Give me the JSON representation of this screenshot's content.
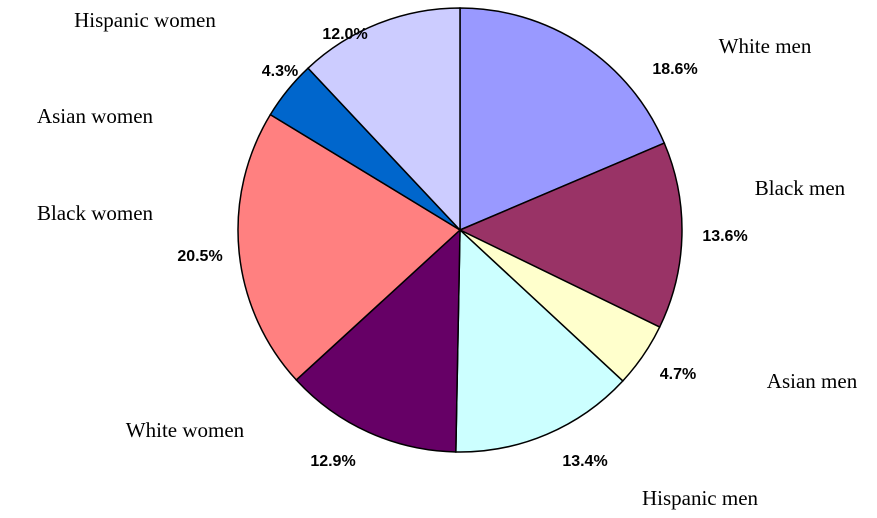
{
  "chart_data": {
    "type": "pie",
    "categories": [
      "White men",
      "Black men",
      "Asian men",
      "Hispanic men",
      "White women",
      "Black women",
      "Asian women",
      "Hispanic women"
    ],
    "values": [
      18.6,
      13.6,
      4.7,
      13.4,
      12.9,
      20.5,
      4.3,
      12.0
    ],
    "value_labels": [
      "18.6%",
      "13.6%",
      "4.7%",
      "13.4%",
      "12.9%",
      "20.5%",
      "4.3%",
      "12.0%"
    ],
    "colors": [
      "#9999ff",
      "#993366",
      "#ffffcc",
      "#ccffff",
      "#660066",
      "#ff8080",
      "#0066cc",
      "#ccccff"
    ]
  }
}
